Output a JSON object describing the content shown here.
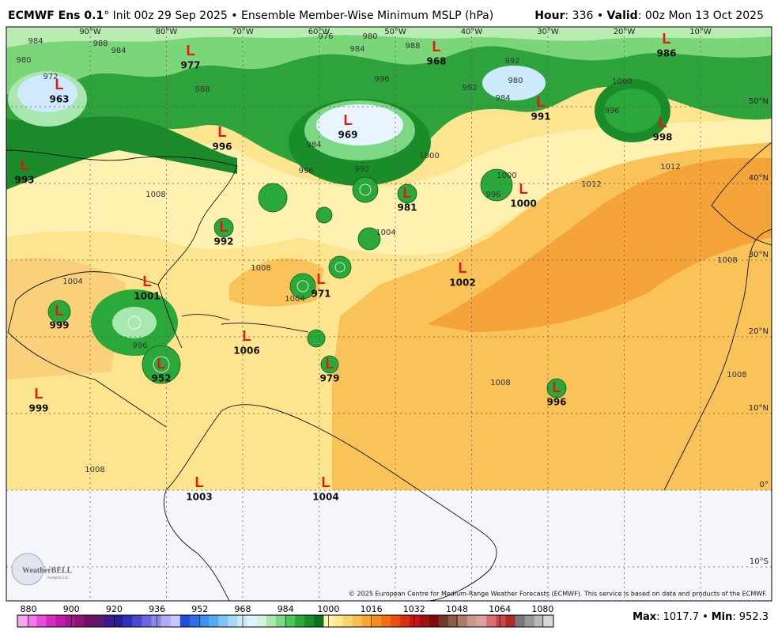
{
  "header": {
    "title_bold": "ECMWF Ens 0.1",
    "title_rest": "° Init 00z 29 Sep 2025 • Ensemble Member-Wise Minimum MSLP (hPa)",
    "hour_label": "Hour",
    "hour_text": ": 336 • ",
    "valid_label": "Valid",
    "valid_text": ": 00z Mon 13 Oct 2025"
  },
  "longitudes": [
    "90°W",
    "80°W",
    "70°W",
    "60°W",
    "50°W",
    "40°W",
    "30°W",
    "20°W",
    "10°W"
  ],
  "latitudes": [
    "50°N",
    "40°N",
    "30°N",
    "20°N",
    "10°N",
    "0°",
    "10°S"
  ],
  "lows": {
    "symbol": "L",
    "values": [
      963,
      977,
      968,
      986,
      996,
      993,
      969,
      991,
      998,
      981,
      1000,
      992,
      1001,
      971,
      1002,
      999,
      1006,
      952,
      979,
      996,
      999,
      1003,
      1004
    ]
  },
  "contour_labels": [
    984,
    988,
    984,
    980,
    972,
    988,
    976,
    980,
    984,
    988,
    992,
    980,
    984,
    996,
    1000,
    996,
    992,
    984,
    996,
    992,
    1000,
    1000,
    1012,
    1012,
    1004,
    1008,
    1004,
    1004,
    1008,
    996,
    1008,
    1008,
    1008,
    1008,
    996
  ],
  "colorbar": {
    "ticks": [
      880,
      900,
      920,
      936,
      952,
      968,
      984,
      1000,
      1016,
      1032,
      1048,
      1064,
      1080
    ],
    "colors": [
      "#f7a6f2",
      "#f07ce6",
      "#e84fd8",
      "#d72cc4",
      "#c21aa8",
      "#a8168e",
      "#8c1478",
      "#701263",
      "#5a1a70",
      "#40188a",
      "#2a1aa0",
      "#3030b8",
      "#4a48cc",
      "#6a66dc",
      "#8c88ea",
      "#b0acf4",
      "#c8c6f8",
      "#1e50d8",
      "#2a70e8",
      "#3c90f0",
      "#58aaf4",
      "#80c4f8",
      "#a8d8fa",
      "#cceafc",
      "#e0f4ff",
      "#d0f4e0",
      "#a8e8b0",
      "#7cd884",
      "#4ec45a",
      "#2aa83a",
      "#1a8c2a",
      "#107020",
      "#fff4b0",
      "#fde890",
      "#fbd470",
      "#f9c050",
      "#f7a830",
      "#f58e20",
      "#f07010",
      "#e65010",
      "#d83010",
      "#c01818",
      "#a01010",
      "#800c0c",
      "#6a3a2a",
      "#8a5a4a",
      "#aa7a6a",
      "#ca9a8a",
      "#e0a0a0",
      "#d87070",
      "#c84848",
      "#b02828",
      "#787878",
      "#989898",
      "#b8b8b8",
      "#d8d8d8"
    ]
  },
  "footer": {
    "max_label": "Max",
    "max": 1017.7,
    "min_label": "Min",
    "min": 952.3,
    "sep": ":",
    "bullet": "•",
    "copyright": "© 2025 European Centre for Medium-Range Weather Forecasts (ECMWF). This service is based on data and products of the ECMWF.",
    "logo": "WeatherBELL",
    "logo_sub": "Analytics LLC"
  }
}
